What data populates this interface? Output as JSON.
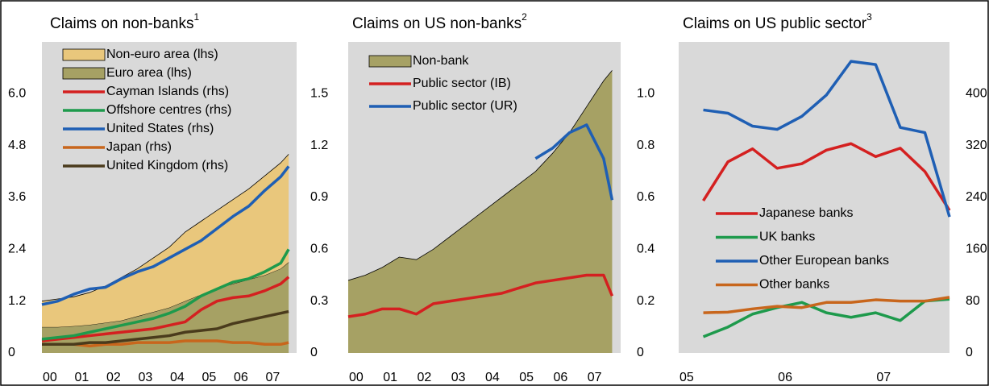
{
  "chart_data": [
    {
      "type": "line",
      "title": "Claims on non-banks",
      "title_note": "1",
      "x": [
        0,
        0.5,
        1,
        1.5,
        2,
        2.5,
        3,
        3.5,
        4,
        4.5,
        5,
        5.5,
        6,
        6.5,
        7,
        7.5,
        7.75
      ],
      "xlim": [
        0,
        8
      ],
      "xticks": [
        {
          "value": 0,
          "label": "00"
        },
        {
          "value": 1,
          "label": "01"
        },
        {
          "value": 2,
          "label": "02"
        },
        {
          "value": 3,
          "label": "03"
        },
        {
          "value": 4,
          "label": "04"
        },
        {
          "value": 5,
          "label": "05"
        },
        {
          "value": 6,
          "label": "06"
        },
        {
          "value": 7,
          "label": "07"
        }
      ],
      "ylim": [
        0,
        7.2
      ],
      "yticks": [
        0,
        1.2,
        2.4,
        3.6,
        4.8,
        {
          "value": 6,
          "label": "6.0"
        }
      ],
      "y2lim": [
        0,
        1.8
      ],
      "y2ticks": [
        0,
        0.3,
        0.6,
        0.9,
        1.2,
        1.5
      ],
      "stacked": true,
      "series": [
        {
          "name": "Non-euro area (lhs)",
          "type": "area",
          "color": "#e9c77c",
          "values": [
            0.6,
            0.65,
            0.68,
            0.75,
            0.85,
            1.0,
            1.1,
            1.25,
            1.4,
            1.6,
            1.7,
            1.8,
            1.95,
            2.1,
            2.3,
            2.45,
            2.5
          ]
        },
        {
          "name": "Euro area (lhs)",
          "type": "area",
          "color": "#a6a164",
          "values": [
            0.6,
            0.6,
            0.62,
            0.65,
            0.7,
            0.75,
            0.85,
            0.95,
            1.05,
            1.2,
            1.35,
            1.5,
            1.6,
            1.7,
            1.8,
            1.95,
            2.1
          ]
        },
        {
          "name": "Cayman Islands (rhs)",
          "type": "line",
          "axis": "y2",
          "color": "#d42020",
          "values": [
            0.07,
            0.08,
            0.09,
            0.1,
            0.11,
            0.12,
            0.13,
            0.14,
            0.16,
            0.18,
            0.25,
            0.3,
            0.32,
            0.33,
            0.36,
            0.4,
            0.44
          ]
        },
        {
          "name": "Offshore centres (rhs)",
          "type": "line",
          "axis": "y2",
          "color": "#1e9a4c",
          "values": [
            0.08,
            0.09,
            0.1,
            0.12,
            0.14,
            0.16,
            0.18,
            0.2,
            0.23,
            0.27,
            0.33,
            0.37,
            0.41,
            0.43,
            0.47,
            0.52,
            0.6
          ]
        },
        {
          "name": "United States (rhs)",
          "type": "line",
          "axis": "y2",
          "color": "#1f5fb4",
          "values": [
            0.28,
            0.3,
            0.34,
            0.37,
            0.38,
            0.43,
            0.47,
            0.5,
            0.55,
            0.6,
            0.65,
            0.72,
            0.79,
            0.85,
            0.94,
            1.02,
            1.08
          ]
        },
        {
          "name": "Japan (rhs)",
          "type": "line",
          "axis": "y2",
          "color": "#c8661c",
          "values": [
            0.05,
            0.05,
            0.05,
            0.04,
            0.05,
            0.05,
            0.06,
            0.06,
            0.06,
            0.07,
            0.07,
            0.07,
            0.06,
            0.06,
            0.05,
            0.05,
            0.06
          ]
        },
        {
          "name": "United Kingdom (rhs)",
          "type": "line",
          "axis": "y2",
          "color": "#4a3b1c",
          "values": [
            0.05,
            0.05,
            0.05,
            0.06,
            0.06,
            0.07,
            0.08,
            0.09,
            0.1,
            0.12,
            0.13,
            0.14,
            0.17,
            0.19,
            0.21,
            0.23,
            0.24
          ]
        }
      ]
    },
    {
      "type": "line",
      "title": "Claims on US non-banks",
      "title_note": "2",
      "x": [
        0,
        0.5,
        1,
        1.5,
        2,
        2.5,
        3,
        3.5,
        4,
        4.5,
        5,
        5.5,
        6,
        6.5,
        7,
        7.5,
        7.75
      ],
      "xlim": [
        0,
        8
      ],
      "xticks": [
        {
          "value": 0,
          "label": "00"
        },
        {
          "value": 1,
          "label": "01"
        },
        {
          "value": 2,
          "label": "02"
        },
        {
          "value": 3,
          "label": "03"
        },
        {
          "value": 4,
          "label": "04"
        },
        {
          "value": 5,
          "label": "05"
        },
        {
          "value": 6,
          "label": "06"
        },
        {
          "value": 7,
          "label": "07"
        }
      ],
      "ylim": [
        0,
        1.2
      ],
      "yticks": [
        0,
        0.2,
        0.4,
        0.6,
        0.8,
        {
          "value": 1,
          "label": "1.0"
        }
      ],
      "series": [
        {
          "name": "Non-bank",
          "type": "area",
          "color": "#a6a164",
          "values": [
            0.28,
            0.3,
            0.33,
            0.37,
            0.36,
            0.4,
            0.45,
            0.5,
            0.55,
            0.6,
            0.65,
            0.7,
            0.77,
            0.85,
            0.95,
            1.05,
            1.09
          ]
        },
        {
          "name": "Public sector (IB)",
          "type": "line",
          "color": "#d42020",
          "values": [
            0.14,
            0.15,
            0.17,
            0.17,
            0.15,
            0.19,
            0.2,
            0.21,
            0.22,
            0.23,
            0.25,
            0.27,
            0.28,
            0.29,
            0.3,
            0.3,
            0.22
          ]
        },
        {
          "name": "Public sector (UR)",
          "type": "line",
          "color": "#1f5fb4",
          "values": [
            null,
            null,
            null,
            null,
            null,
            null,
            null,
            null,
            null,
            null,
            null,
            0.75,
            0.79,
            0.85,
            0.88,
            0.75,
            0.59
          ]
        }
      ]
    },
    {
      "type": "line",
      "title": "Claims on US public sector",
      "title_note": "3",
      "x": [
        5.25,
        5.5,
        5.75,
        6,
        6.25,
        6.5,
        6.75,
        7,
        7.25,
        7.5,
        7.75
      ],
      "xlim": [
        5,
        7.75
      ],
      "xticks": [
        {
          "value": 5,
          "label": "05"
        },
        {
          "value": 6,
          "label": "06"
        },
        {
          "value": 7,
          "label": "07"
        }
      ],
      "ylim": [
        0,
        480
      ],
      "yticks": [
        0,
        80,
        160,
        240,
        320,
        400
      ],
      "series": [
        {
          "name": "Japanese banks",
          "type": "line",
          "color": "#d42020",
          "values": [
            235,
            295,
            315,
            285,
            292,
            313,
            323,
            303,
            316,
            280,
            220
          ]
        },
        {
          "name": "UK banks",
          "type": "line",
          "color": "#1e9a4c",
          "values": [
            25,
            40,
            60,
            70,
            78,
            62,
            55,
            62,
            50,
            80,
            83
          ]
        },
        {
          "name": "Other European banks",
          "type": "line",
          "color": "#1f5fb4",
          "values": [
            375,
            370,
            350,
            345,
            365,
            398,
            450,
            445,
            348,
            340,
            210
          ]
        },
        {
          "name": "Other banks",
          "type": "line",
          "color": "#c8661c",
          "values": [
            62,
            63,
            68,
            72,
            70,
            78,
            78,
            82,
            80,
            80,
            86
          ]
        }
      ]
    }
  ]
}
